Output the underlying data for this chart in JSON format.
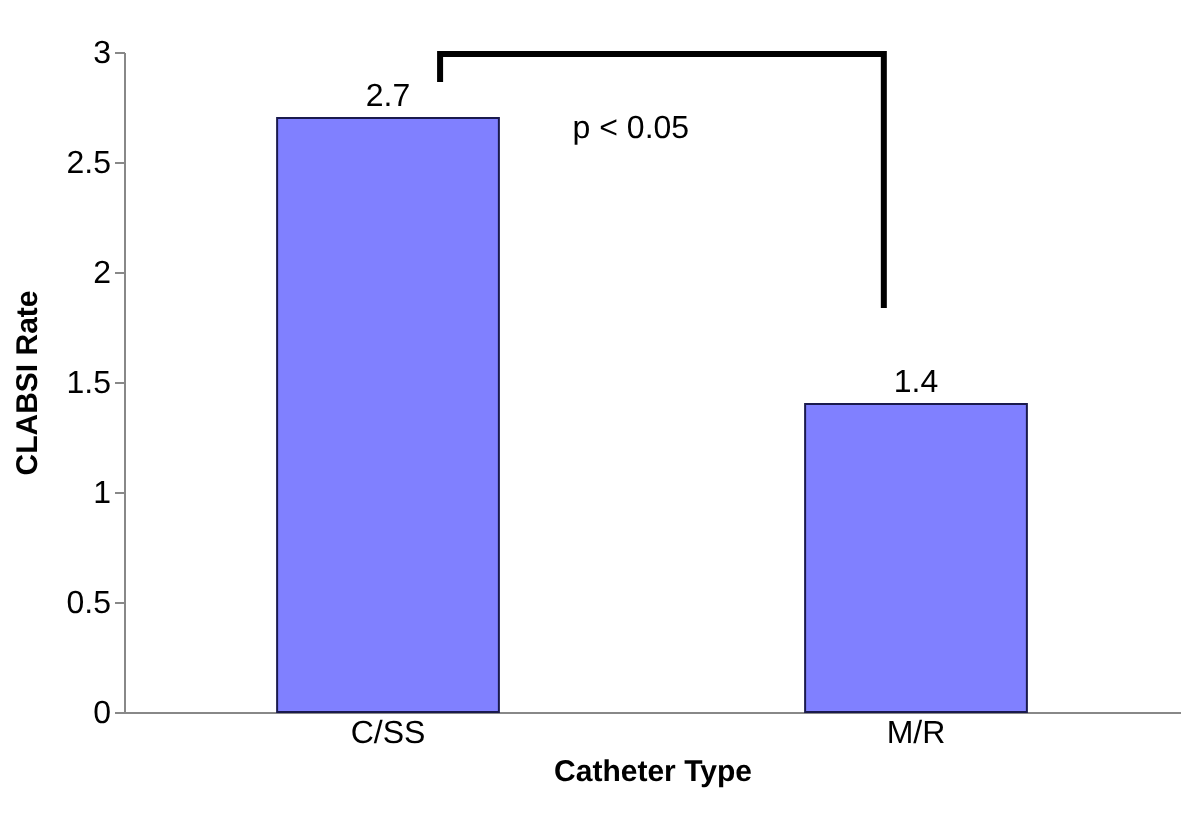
{
  "chart_data": {
    "type": "bar",
    "categories": [
      "C/SS",
      "M/R"
    ],
    "values": [
      2.7,
      1.4
    ],
    "color": "#8080ff",
    "xlabel": "Catheter Type",
    "ylabel": "CLABSI Rate",
    "ylim": [
      0,
      3
    ],
    "yticks": [
      0,
      0.5,
      1,
      1.5,
      2,
      2.5,
      3
    ],
    "data_labels": true,
    "annotations": [
      "p < 0.05"
    ]
  }
}
